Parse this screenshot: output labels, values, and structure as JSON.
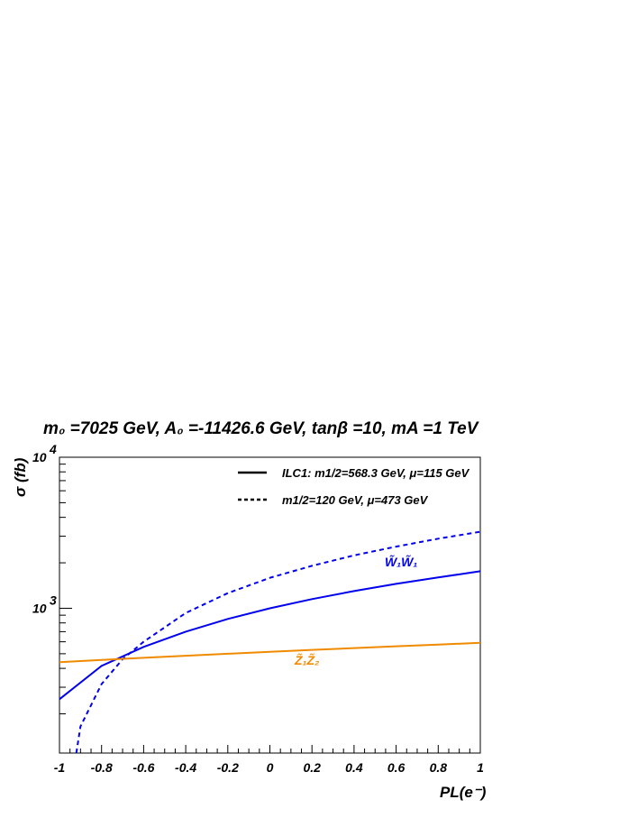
{
  "chart_data": {
    "type": "line",
    "title": "m₀ =7025 GeV, A₀ =-11426.6 GeV, tanβ =10, mA =1 TeV",
    "xlabel": "PL(e⁻)",
    "ylabel": "σ (fb)",
    "xlim": [
      -1,
      1
    ],
    "ylim": [
      110,
      10000
    ],
    "yscale": "log",
    "x_ticks": [
      "-1",
      "-0.8",
      "-0.6",
      "-0.4",
      "-0.2",
      "0",
      "0.2",
      "0.4",
      "0.6",
      "0.8",
      "1"
    ],
    "y_ticks": [
      {
        "value": 1000,
        "base": "10",
        "exp": "3"
      },
      {
        "value": 10000,
        "base": "10",
        "exp": "4"
      }
    ],
    "legend": {
      "placement": "top-right",
      "entries": [
        {
          "style": "solid",
          "label": "ILC1: m1/2=568.3 GeV, μ=115 GeV"
        },
        {
          "style": "dashed",
          "label": "m1/2=120 GeV, μ=473 GeV"
        }
      ]
    },
    "annotations": [
      {
        "text": "W̃₁W̃₁",
        "color": "#0000ee"
      },
      {
        "text": "Z̃₁Z̃₂",
        "color": "#f08a00"
      }
    ],
    "series": [
      {
        "color": "#0000ee",
        "style": "solid",
        "x": [
          -1,
          -0.8,
          -0.6,
          -0.4,
          -0.2,
          0,
          0.2,
          0.4,
          0.6,
          0.8,
          1
        ],
        "y": [
          250,
          415,
          555,
          700,
          850,
          1000,
          1150,
          1300,
          1450,
          1600,
          1760
        ]
      },
      {
        "color": "#0000ee",
        "style": "dashed",
        "x": [
          -0.92,
          -0.9,
          -0.8,
          -0.7,
          -0.6,
          -0.4,
          -0.2,
          0,
          0.2,
          0.4,
          0.6,
          0.8,
          1
        ],
        "y": [
          110,
          165,
          315,
          460,
          600,
          930,
          1260,
          1590,
          1910,
          2240,
          2560,
          2890,
          3210
        ]
      },
      {
        "color": "#f08a00",
        "style": "solid",
        "x": [
          -1,
          -0.8,
          -0.6,
          -0.4,
          -0.2,
          0,
          0.2,
          0.4,
          0.6,
          0.8,
          1
        ],
        "y": [
          440,
          455,
          470,
          485,
          500,
          515,
          530,
          545,
          560,
          575,
          590
        ]
      }
    ]
  }
}
